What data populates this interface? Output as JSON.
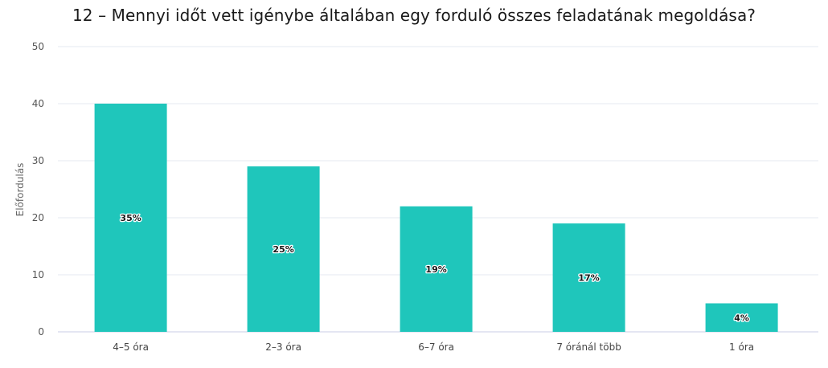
{
  "chart_data": {
    "type": "bar",
    "title": "12 – Mennyi időt vett igénybe általában egy forduló összes feladatának megoldása?",
    "ylabel": "Előfordulás",
    "xlabel": "",
    "categories": [
      "4–5 óra",
      "2–3 óra",
      "6–7 óra",
      "7 óránál több",
      "1 óra"
    ],
    "values": [
      40,
      29,
      22,
      19,
      5
    ],
    "data_labels": [
      "35%",
      "25%",
      "19%",
      "17%",
      "4%"
    ],
    "ylim": [
      0,
      50
    ],
    "yticks": [
      0,
      10,
      20,
      30,
      40,
      50
    ],
    "grid": true,
    "legend": "none",
    "colors": {
      "bar": "#1fc6bb",
      "grid": "#e6e8f0",
      "axis": "#c9cde6"
    }
  }
}
